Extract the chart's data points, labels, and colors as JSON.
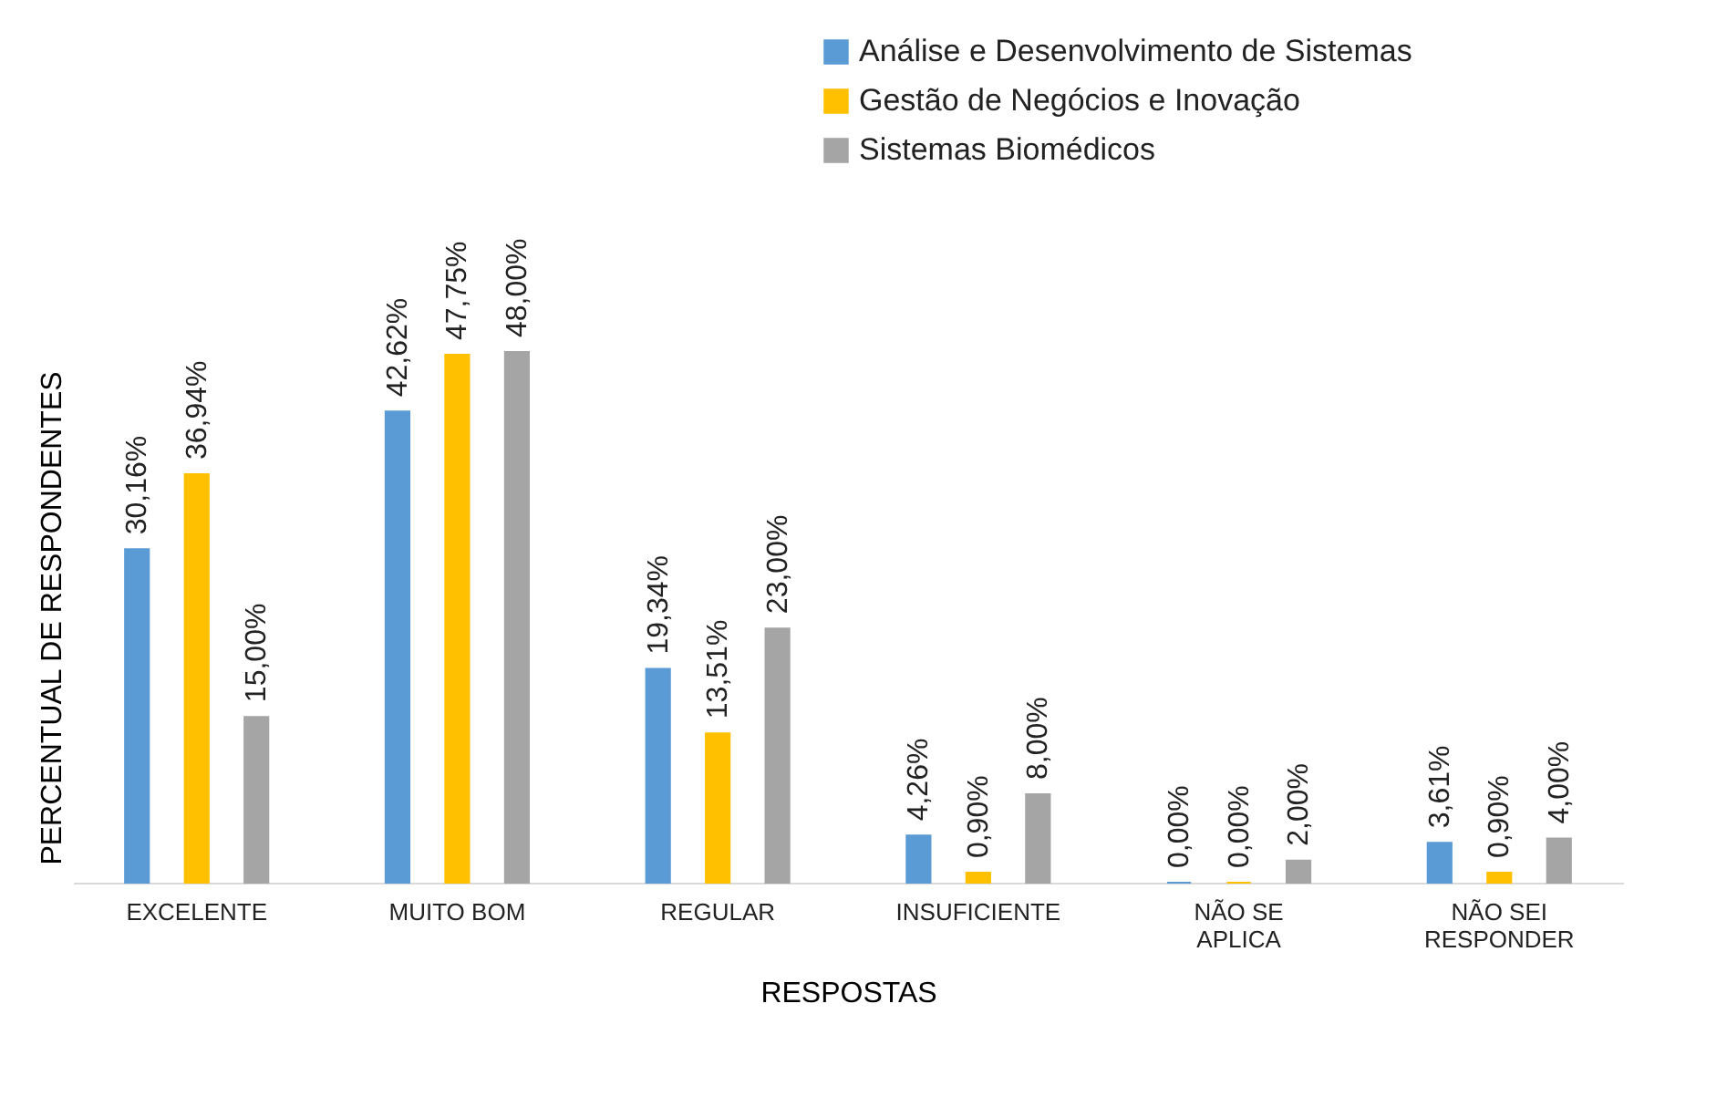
{
  "chart_data": {
    "type": "bar",
    "xlabel": "RESPOSTAS",
    "ylabel": "PERCENTUAL DE RESPONDENTES",
    "categories": [
      "EXCELENTE",
      "MUITO BOM",
      "REGULAR",
      "INSUFICIENTE",
      "NÃO SE APLICA",
      "NÃO SEI RESPONDER"
    ],
    "series": [
      {
        "name": "Análise e Desenvolvimento de Sistemas",
        "color": "#5b9bd5",
        "values": [
          30.16,
          42.62,
          19.34,
          4.26,
          0,
          3.61
        ],
        "value_labels": [
          "30,16%",
          "42,62%",
          "19,34%",
          "4,26%",
          "0,00%",
          "3,61%"
        ]
      },
      {
        "name": "Gestão de Negócios e Inovação",
        "color": "#ffc000",
        "values": [
          36.94,
          47.75,
          13.51,
          0.9,
          0,
          0.9
        ],
        "value_labels": [
          "36,94%",
          "47,75%",
          "13,51%",
          "0,90%",
          "0,00%",
          "0,90%"
        ]
      },
      {
        "name": "Sistemas Biomédicos",
        "color": "#a5a5a5",
        "values": [
          15,
          48,
          23,
          8,
          2,
          4
        ],
        "value_labels": [
          "15,00%",
          "48,00%",
          "23,00%",
          "8,00%",
          "2,00%",
          "4,00%"
        ]
      }
    ],
    "legend": "top right",
    "grid": false,
    "tick_labels": "x"
  }
}
